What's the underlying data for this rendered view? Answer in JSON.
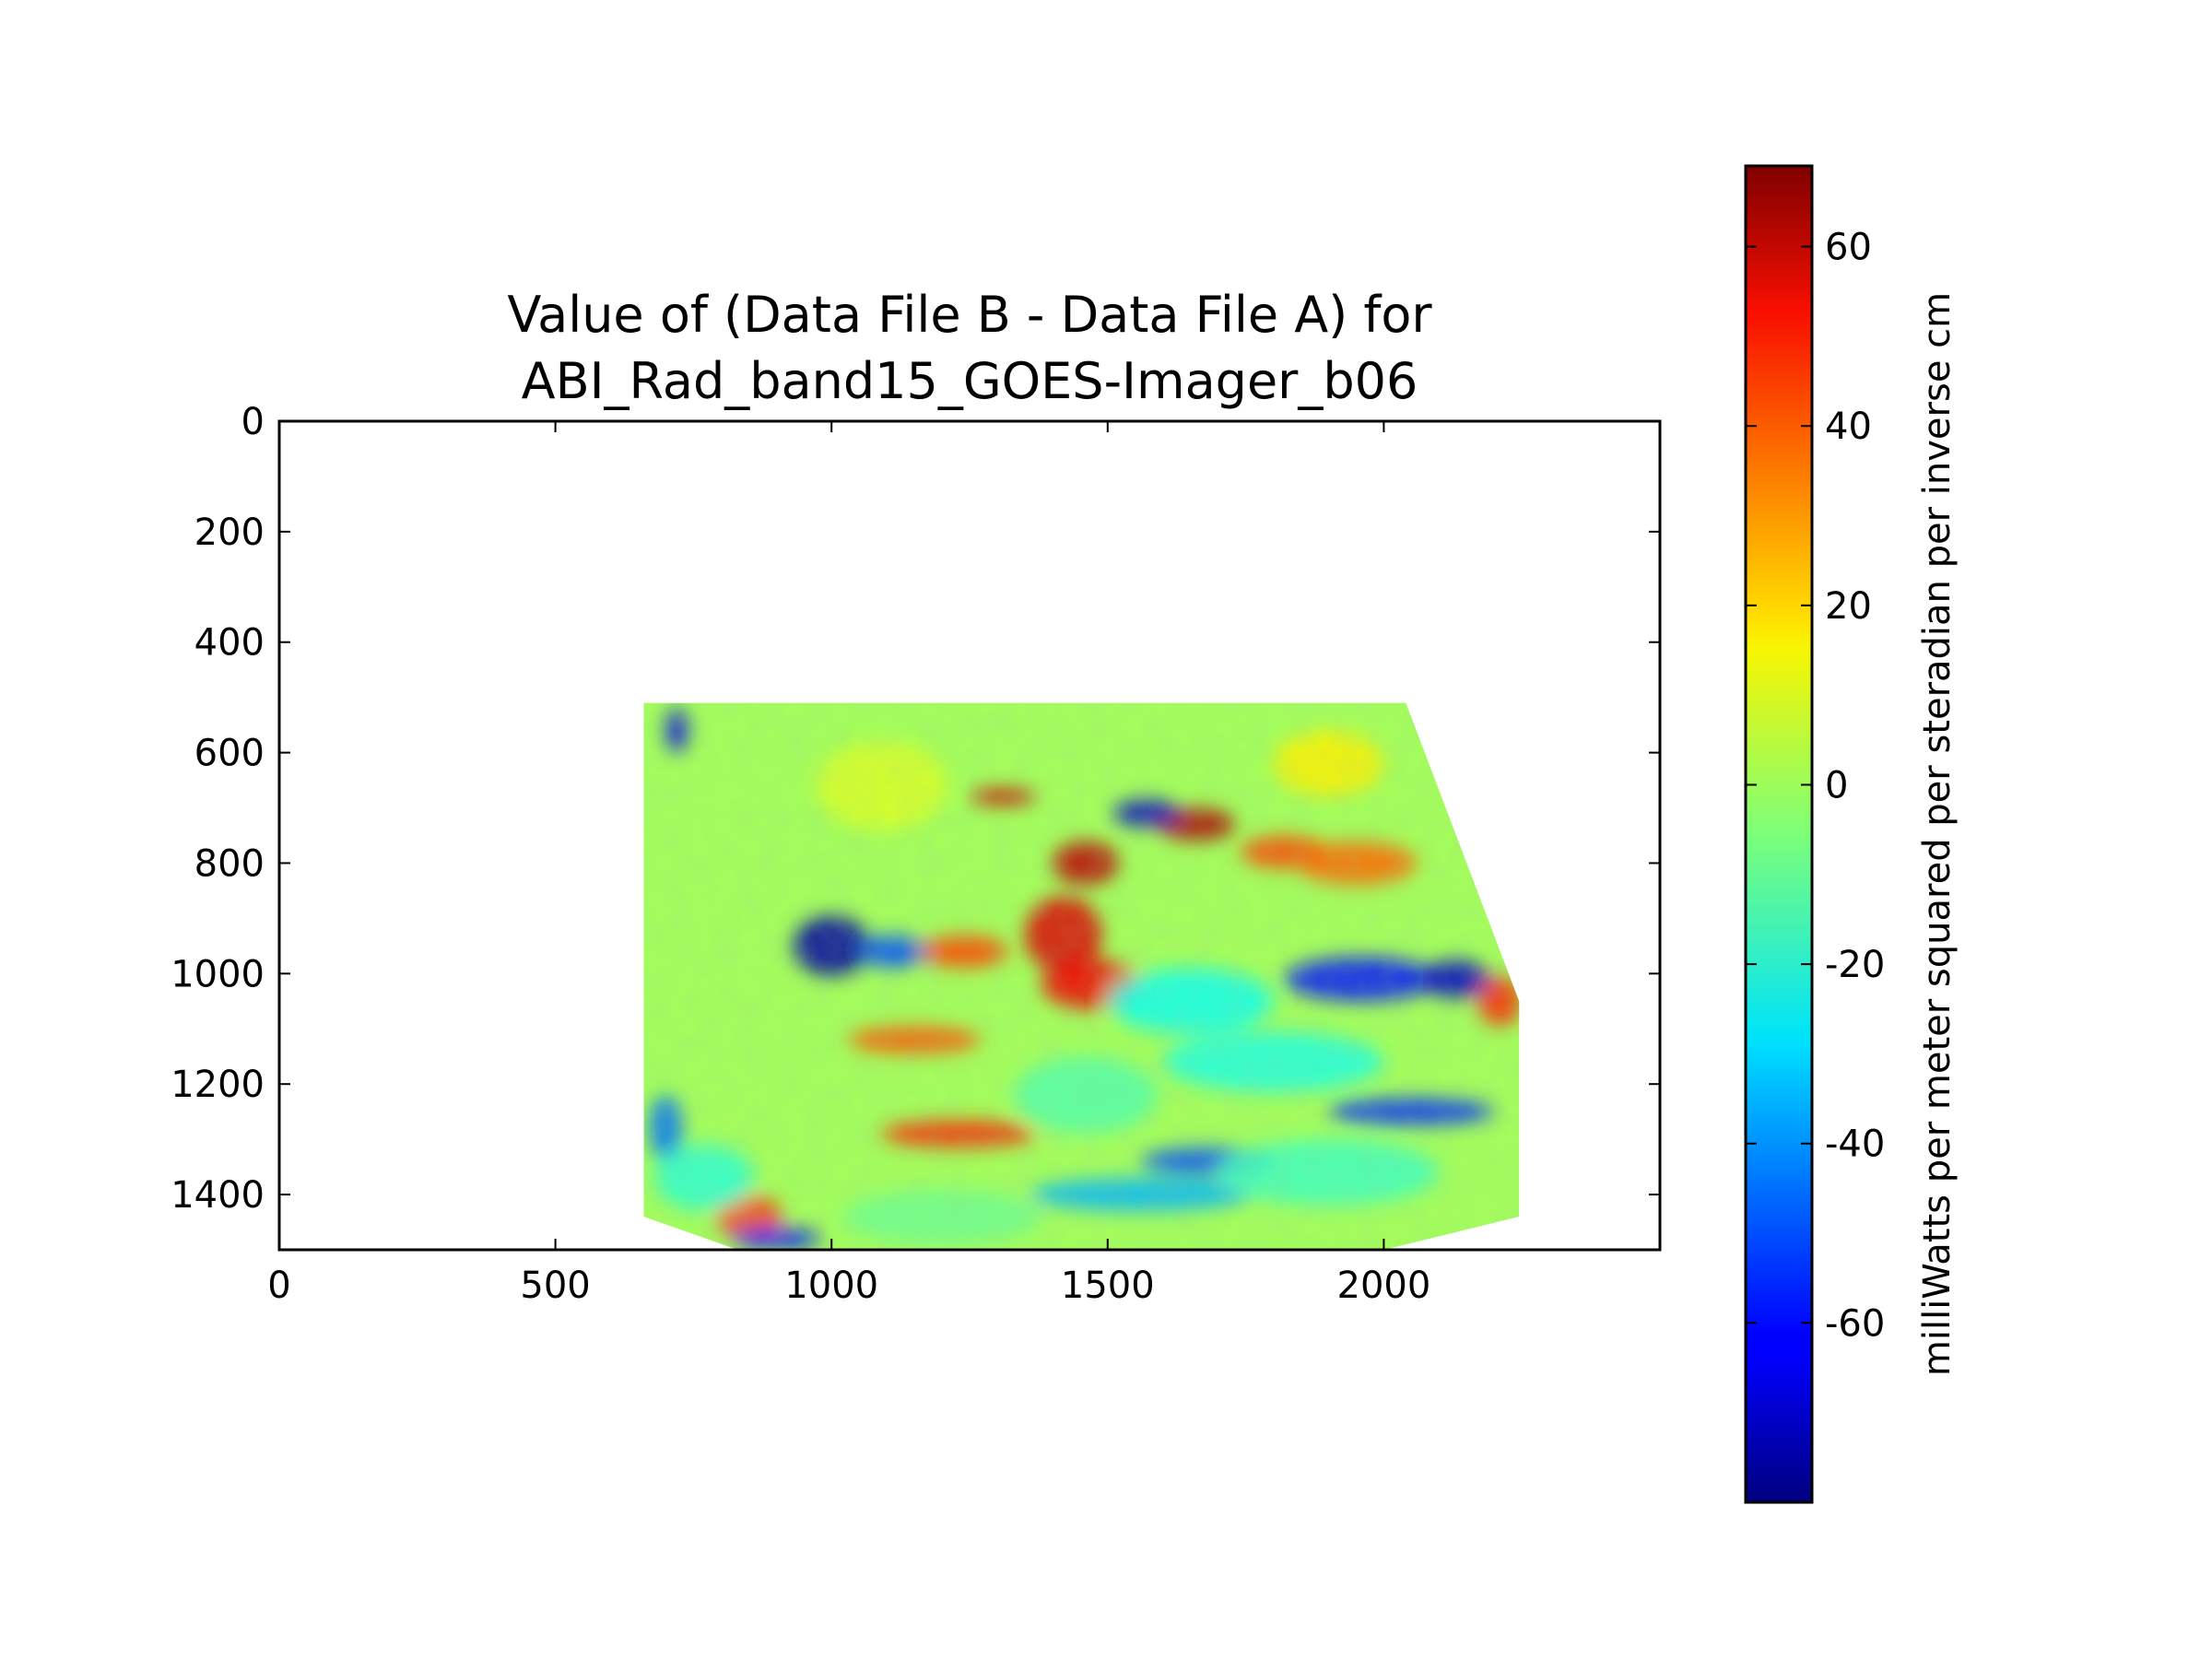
{
  "chart_data": {
    "type": "heatmap",
    "title": [
      "Value of (Data File B - Data File A) for",
      "ABI_Rad_band15_GOES-Imager_b06"
    ],
    "xlabel": "",
    "ylabel": "",
    "xlim": [
      0,
      2500
    ],
    "ylim": [
      1500,
      0
    ],
    "y_inverted": true,
    "x_ticks": [
      0,
      500,
      1000,
      1500,
      2000
    ],
    "y_ticks": [
      0,
      200,
      400,
      600,
      800,
      1000,
      1200,
      1400
    ],
    "data_region_outline": [
      [
        660,
        510
      ],
      [
        2040,
        510
      ],
      [
        2245,
        1050
      ],
      [
        2245,
        1440
      ],
      [
        2000,
        1500
      ],
      [
        830,
        1500
      ],
      [
        660,
        1440
      ]
    ],
    "colormap": "jet",
    "colorbar": {
      "label": "milliWatts per meter squared per steradian per inverse cm",
      "range": [
        -80,
        69
      ],
      "ticks": [
        60,
        40,
        20,
        0,
        -20,
        -40,
        -60
      ]
    },
    "background_value": 0,
    "features": [
      {
        "x": 1420,
        "y": 930,
        "rx": 70,
        "ry": 70,
        "value": 55
      },
      {
        "x": 1470,
        "y": 1020,
        "rx": 90,
        "ry": 45,
        "value": 52
      },
      {
        "x": 1460,
        "y": 800,
        "rx": 60,
        "ry": 40,
        "value": 60
      },
      {
        "x": 1660,
        "y": 730,
        "rx": 70,
        "ry": 30,
        "value": 62
      },
      {
        "x": 1820,
        "y": 780,
        "rx": 80,
        "ry": 30,
        "value": 40
      },
      {
        "x": 1950,
        "y": 800,
        "rx": 110,
        "ry": 40,
        "value": 35
      },
      {
        "x": 2210,
        "y": 1050,
        "rx": 40,
        "ry": 45,
        "value": 45
      },
      {
        "x": 1310,
        "y": 680,
        "rx": 60,
        "ry": 15,
        "value": 58
      },
      {
        "x": 1240,
        "y": 960,
        "rx": 80,
        "ry": 30,
        "value": 40
      },
      {
        "x": 1150,
        "y": 1120,
        "rx": 120,
        "ry": 25,
        "value": 38
      },
      {
        "x": 1230,
        "y": 1290,
        "rx": 140,
        "ry": 25,
        "value": 45
      },
      {
        "x": 850,
        "y": 1440,
        "rx": 60,
        "ry": 40,
        "value": 42
      },
      {
        "x": 1900,
        "y": 620,
        "rx": 100,
        "ry": 60,
        "value": 15
      },
      {
        "x": 1090,
        "y": 660,
        "rx": 120,
        "ry": 80,
        "value": 8
      },
      {
        "x": 1000,
        "y": 950,
        "rx": 70,
        "ry": 55,
        "value": -75
      },
      {
        "x": 1110,
        "y": 960,
        "rx": 60,
        "ry": 30,
        "value": -50
      },
      {
        "x": 1570,
        "y": 710,
        "rx": 60,
        "ry": 25,
        "value": -70
      },
      {
        "x": 1960,
        "y": 1010,
        "rx": 140,
        "ry": 40,
        "value": -60
      },
      {
        "x": 2130,
        "y": 1010,
        "rx": 60,
        "ry": 35,
        "value": -70
      },
      {
        "x": 2050,
        "y": 1250,
        "rx": 150,
        "ry": 25,
        "value": -55
      },
      {
        "x": 1680,
        "y": 1340,
        "rx": 120,
        "ry": 25,
        "value": -50
      },
      {
        "x": 1560,
        "y": 1400,
        "rx": 200,
        "ry": 30,
        "value": -35
      },
      {
        "x": 1650,
        "y": 1050,
        "rx": 150,
        "ry": 60,
        "value": -22
      },
      {
        "x": 1800,
        "y": 1160,
        "rx": 200,
        "ry": 55,
        "value": -20
      },
      {
        "x": 700,
        "y": 1280,
        "rx": 30,
        "ry": 60,
        "value": -45
      },
      {
        "x": 900,
        "y": 1480,
        "rx": 80,
        "ry": 20,
        "value": -60
      },
      {
        "x": 770,
        "y": 1370,
        "rx": 90,
        "ry": 60,
        "value": -18
      },
      {
        "x": 1460,
        "y": 1220,
        "rx": 130,
        "ry": 70,
        "value": -12
      },
      {
        "x": 1200,
        "y": 1440,
        "rx": 180,
        "ry": 50,
        "value": -8
      },
      {
        "x": 1900,
        "y": 1360,
        "rx": 200,
        "ry": 60,
        "value": -15
      },
      {
        "x": 720,
        "y": 560,
        "rx": 20,
        "ry": 40,
        "value": -65
      }
    ]
  }
}
